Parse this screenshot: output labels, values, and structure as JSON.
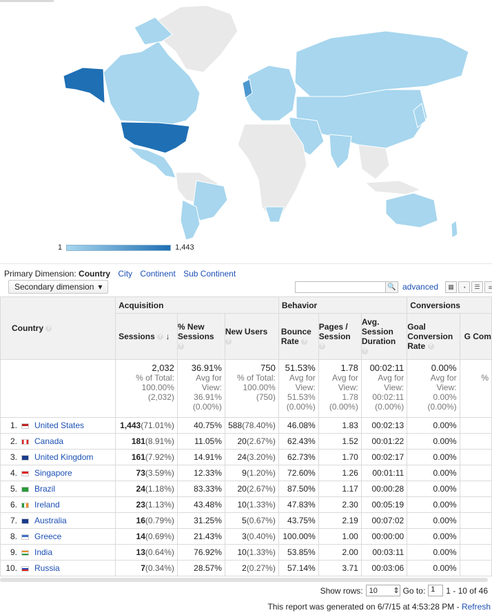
{
  "map": {
    "legend_min": "1",
    "legend_max": "1,443",
    "colors": {
      "low": "#a7d6ee",
      "high": "#1f6fb4",
      "none": "#e9e9e9",
      "mid": "#4d97cf"
    }
  },
  "dimension": {
    "label": "Primary Dimension:",
    "current": "Country",
    "options": [
      "City",
      "Continent",
      "Sub Continent"
    ]
  },
  "toolbar": {
    "secondary_dimension": "Secondary dimension",
    "advanced": "advanced"
  },
  "table": {
    "groups": {
      "acquisition": "Acquisition",
      "behavior": "Behavior",
      "conversions": "Conversions"
    },
    "headers": {
      "country": "Country",
      "sessions": "Sessions",
      "new_sessions": "% New Sessions",
      "new_users": "New Users",
      "bounce": "Bounce Rate",
      "pages": "Pages / Session",
      "duration": "Avg. Session Duration",
      "goal": "Goal Conversion Rate",
      "goal_comp": "G Com"
    },
    "summary": {
      "sessions": [
        "2,032",
        "% of Total:",
        "100.00%",
        "(2,032)"
      ],
      "new_sessions": [
        "36.91%",
        "Avg for",
        "View:",
        "36.91%",
        "(0.00%)"
      ],
      "new_users": [
        "750",
        "% of Total:",
        "100.00%",
        "(750)"
      ],
      "bounce": [
        "51.53%",
        "Avg for",
        "View:",
        "51.53%",
        "(0.00%)"
      ],
      "pages": [
        "1.78",
        "Avg for",
        "View:",
        "1.78",
        "(0.00%)"
      ],
      "duration": [
        "00:02:11",
        "Avg for",
        "View:",
        "00:02:11",
        "(0.00%)"
      ],
      "goal": [
        "0.00%",
        "Avg for",
        "View:",
        "0.00%",
        "(0.00%)"
      ],
      "goal_comp": "%"
    },
    "rows": [
      {
        "idx": "1.",
        "country": "United States",
        "sessions": "1,443",
        "spct": "(71.01%)",
        "newpct": "40.75%",
        "users": "588",
        "upct": "(78.40%)",
        "bounce": "46.08%",
        "pages": "1.83",
        "dur": "00:02:13",
        "goal": "0.00%"
      },
      {
        "idx": "2.",
        "country": "Canada",
        "sessions": "181",
        "spct": "(8.91%)",
        "newpct": "11.05%",
        "users": "20",
        "upct": "(2.67%)",
        "bounce": "62.43%",
        "pages": "1.52",
        "dur": "00:01:22",
        "goal": "0.00%"
      },
      {
        "idx": "3.",
        "country": "United Kingdom",
        "sessions": "161",
        "spct": "(7.92%)",
        "newpct": "14.91%",
        "users": "24",
        "upct": "(3.20%)",
        "bounce": "62.73%",
        "pages": "1.70",
        "dur": "00:02:17",
        "goal": "0.00%"
      },
      {
        "idx": "4.",
        "country": "Singapore",
        "sessions": "73",
        "spct": "(3.59%)",
        "newpct": "12.33%",
        "users": "9",
        "upct": "(1.20%)",
        "bounce": "72.60%",
        "pages": "1.26",
        "dur": "00:01:11",
        "goal": "0.00%"
      },
      {
        "idx": "5.",
        "country": "Brazil",
        "sessions": "24",
        "spct": "(1.18%)",
        "newpct": "83.33%",
        "users": "20",
        "upct": "(2.67%)",
        "bounce": "87.50%",
        "pages": "1.17",
        "dur": "00:00:28",
        "goal": "0.00%"
      },
      {
        "idx": "6.",
        "country": "Ireland",
        "sessions": "23",
        "spct": "(1.13%)",
        "newpct": "43.48%",
        "users": "10",
        "upct": "(1.33%)",
        "bounce": "47.83%",
        "pages": "2.30",
        "dur": "00:05:19",
        "goal": "0.00%"
      },
      {
        "idx": "7.",
        "country": "Australia",
        "sessions": "16",
        "spct": "(0.79%)",
        "newpct": "31.25%",
        "users": "5",
        "upct": "(0.67%)",
        "bounce": "43.75%",
        "pages": "2.19",
        "dur": "00:07:02",
        "goal": "0.00%"
      },
      {
        "idx": "8.",
        "country": "Greece",
        "sessions": "14",
        "spct": "(0.69%)",
        "newpct": "21.43%",
        "users": "3",
        "upct": "(0.40%)",
        "bounce": "100.00%",
        "pages": "1.00",
        "dur": "00:00:00",
        "goal": "0.00%"
      },
      {
        "idx": "9.",
        "country": "India",
        "sessions": "13",
        "spct": "(0.64%)",
        "newpct": "76.92%",
        "users": "10",
        "upct": "(1.33%)",
        "bounce": "53.85%",
        "pages": "2.00",
        "dur": "00:03:11",
        "goal": "0.00%"
      },
      {
        "idx": "10.",
        "country": "Russia",
        "sessions": "7",
        "spct": "(0.34%)",
        "newpct": "28.57%",
        "users": "2",
        "upct": "(0.27%)",
        "bounce": "57.14%",
        "pages": "3.71",
        "dur": "00:03:06",
        "goal": "0.00%"
      }
    ]
  },
  "footer": {
    "show_rows": "Show rows:",
    "rows_value": "10",
    "goto": "Go to:",
    "goto_value": "1",
    "range": "1 - 10 of 46",
    "generated": "This report was generated on 6/7/15 at 4:53:28 PM -",
    "refresh": "Refresh"
  }
}
